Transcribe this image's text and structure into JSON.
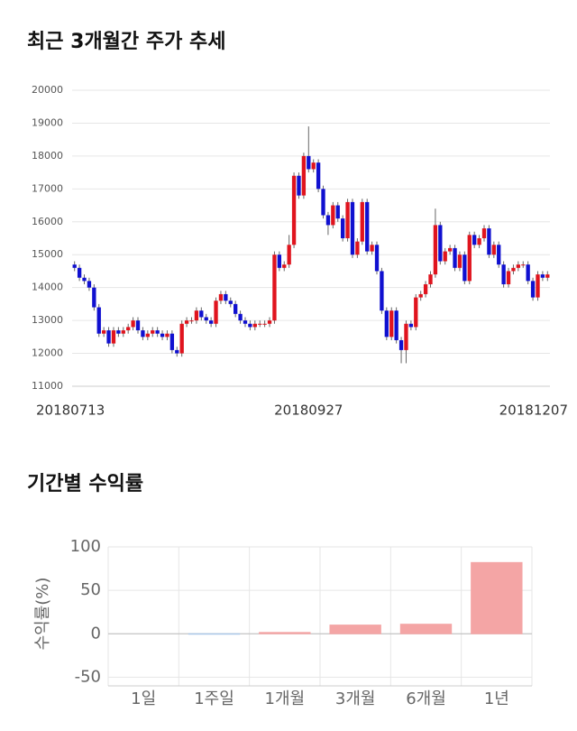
{
  "chart_data": [
    {
      "type": "candlestick",
      "title": "최근 3개월간 주가 추세",
      "categories": [
        "20180713",
        null,
        null,
        null,
        null,
        null,
        null,
        null,
        null,
        null,
        null,
        null,
        null,
        null,
        null,
        null,
        null,
        null,
        null,
        null,
        null,
        null,
        null,
        null,
        null,
        null,
        null,
        null,
        null,
        null,
        null,
        null,
        null,
        null,
        null,
        null,
        null,
        null,
        null,
        null,
        null,
        null,
        null,
        null,
        null,
        null,
        null,
        null,
        "20180927",
        null,
        null,
        null,
        null,
        null,
        null,
        null,
        null,
        null,
        null,
        null,
        null,
        null,
        null,
        null,
        null,
        null,
        null,
        null,
        null,
        null,
        null,
        null,
        null,
        null,
        null,
        null,
        null,
        null,
        null,
        null,
        null,
        null,
        null,
        null,
        null,
        null,
        null,
        null,
        null,
        null,
        null,
        null,
        null,
        null,
        null,
        null,
        null,
        "20181207"
      ],
      "open": [
        14700,
        14600,
        14300,
        14200,
        14000,
        13400,
        12600,
        12700,
        12300,
        12700,
        12600,
        12700,
        12800,
        13000,
        12700,
        12500,
        12600,
        12700,
        12600,
        12500,
        12600,
        12100,
        12000,
        12900,
        13000,
        13000,
        13300,
        13100,
        13000,
        12900,
        13600,
        13800,
        13600,
        13500,
        13200,
        13000,
        12900,
        12800,
        12900,
        12900,
        12900,
        13000,
        15000,
        14600,
        14700,
        15300,
        17400,
        16800,
        18000,
        17600,
        17800,
        17000,
        16200,
        15900,
        16500,
        16100,
        15500,
        16600,
        15000,
        15400,
        16600,
        15100,
        15300,
        14500,
        13300,
        12500,
        13300,
        12400,
        12100,
        12900,
        12800,
        13700,
        13800,
        14100,
        14400,
        15900,
        14800,
        15100,
        15200,
        14600,
        15000,
        14200,
        15600,
        15300,
        15500,
        15800,
        15000,
        15300,
        14700,
        14100,
        14500,
        14600,
        14700,
        14700,
        14200,
        13700,
        14400,
        14300
      ],
      "high": [
        14800,
        14700,
        14400,
        14300,
        14100,
        13500,
        12800,
        12800,
        12800,
        12800,
        12800,
        12900,
        13100,
        13100,
        12800,
        12700,
        12800,
        12800,
        12700,
        12700,
        12700,
        12200,
        13000,
        13100,
        13100,
        13400,
        13400,
        13200,
        13100,
        13700,
        13900,
        13900,
        13700,
        13600,
        13300,
        13100,
        13000,
        13000,
        13000,
        13000,
        13100,
        15100,
        15100,
        14800,
        15600,
        17500,
        17500,
        18100,
        18900,
        17900,
        17900,
        17100,
        16300,
        16600,
        16600,
        16200,
        16700,
        16700,
        15500,
        16700,
        16700,
        15400,
        15400,
        14600,
        13400,
        13400,
        13400,
        12500,
        13000,
        13000,
        13800,
        13900,
        14200,
        14500,
        16400,
        16000,
        15200,
        15300,
        15300,
        15100,
        15100,
        15700,
        15700,
        15600,
        15900,
        15900,
        15400,
        15400,
        14800,
        14600,
        14700,
        14800,
        14800,
        14800,
        14300,
        14500,
        14500,
        14500
      ],
      "low": [
        14500,
        14200,
        14100,
        13900,
        13300,
        12500,
        12500,
        12200,
        12200,
        12500,
        12500,
        12600,
        12700,
        12600,
        12400,
        12400,
        12500,
        12500,
        12400,
        12400,
        12000,
        11900,
        11900,
        12800,
        12900,
        12900,
        13000,
        12900,
        12800,
        12800,
        13500,
        13500,
        13400,
        13100,
        12900,
        12800,
        12700,
        12700,
        12800,
        12800,
        12800,
        12900,
        14500,
        14500,
        14600,
        15200,
        16700,
        16700,
        17500,
        17500,
        16900,
        16100,
        15600,
        15800,
        16000,
        15400,
        15400,
        14900,
        14900,
        15300,
        15000,
        15000,
        14400,
        13200,
        12400,
        12400,
        12300,
        11700,
        11700,
        12700,
        12700,
        13600,
        13700,
        14000,
        14300,
        14700,
        14700,
        15000,
        14500,
        14500,
        14100,
        14100,
        15200,
        15200,
        15400,
        14900,
        14900,
        14600,
        14000,
        14000,
        14400,
        14500,
        14600,
        14100,
        13600,
        13600,
        14200,
        14200
      ],
      "close": [
        14600,
        14300,
        14200,
        14000,
        13400,
        12600,
        12700,
        12300,
        12700,
        12600,
        12700,
        12800,
        13000,
        12700,
        12500,
        12600,
        12700,
        12600,
        12500,
        12600,
        12100,
        12000,
        12900,
        13000,
        13000,
        13300,
        13100,
        13000,
        12900,
        13600,
        13800,
        13600,
        13500,
        13200,
        13000,
        12900,
        12800,
        12900,
        12900,
        12900,
        13000,
        15000,
        14600,
        14700,
        15300,
        17400,
        16800,
        18000,
        17600,
        17800,
        17000,
        16200,
        15900,
        16500,
        16100,
        15500,
        16600,
        15000,
        15400,
        16600,
        15100,
        15300,
        14500,
        13300,
        12500,
        13300,
        12400,
        12100,
        12900,
        12800,
        13700,
        13800,
        14100,
        14400,
        15900,
        14800,
        15100,
        15200,
        14600,
        15000,
        14200,
        15600,
        15300,
        15500,
        15800,
        15000,
        15300,
        14700,
        14100,
        14500,
        14600,
        14700,
        14700,
        14200,
        13700,
        14400,
        14300,
        14400
      ],
      "up_color": "#e0141e",
      "down_color": "#1010d0",
      "ylim": [
        11000,
        20000
      ],
      "yticks": [
        11000,
        12000,
        13000,
        14000,
        15000,
        16000,
        17000,
        18000,
        19000,
        20000
      ],
      "grid": true
    },
    {
      "type": "bar",
      "title": "기간별 수익률",
      "y_label": "수익률(%)",
      "categories": [
        "1일",
        "1주일",
        "1개월",
        "3개월",
        "6개월",
        "1년"
      ],
      "values": [
        0,
        -0.5,
        1.5,
        10,
        11,
        82
      ],
      "colors": [
        "#f4a5a5",
        "#a9c8e8",
        "#f4a5a5",
        "#f4a5a5",
        "#f4a5a5",
        "#f4a5a5"
      ],
      "ylim": [
        -60,
        100
      ],
      "yticks": [
        -50,
        0,
        50,
        100
      ],
      "grid": true
    }
  ]
}
